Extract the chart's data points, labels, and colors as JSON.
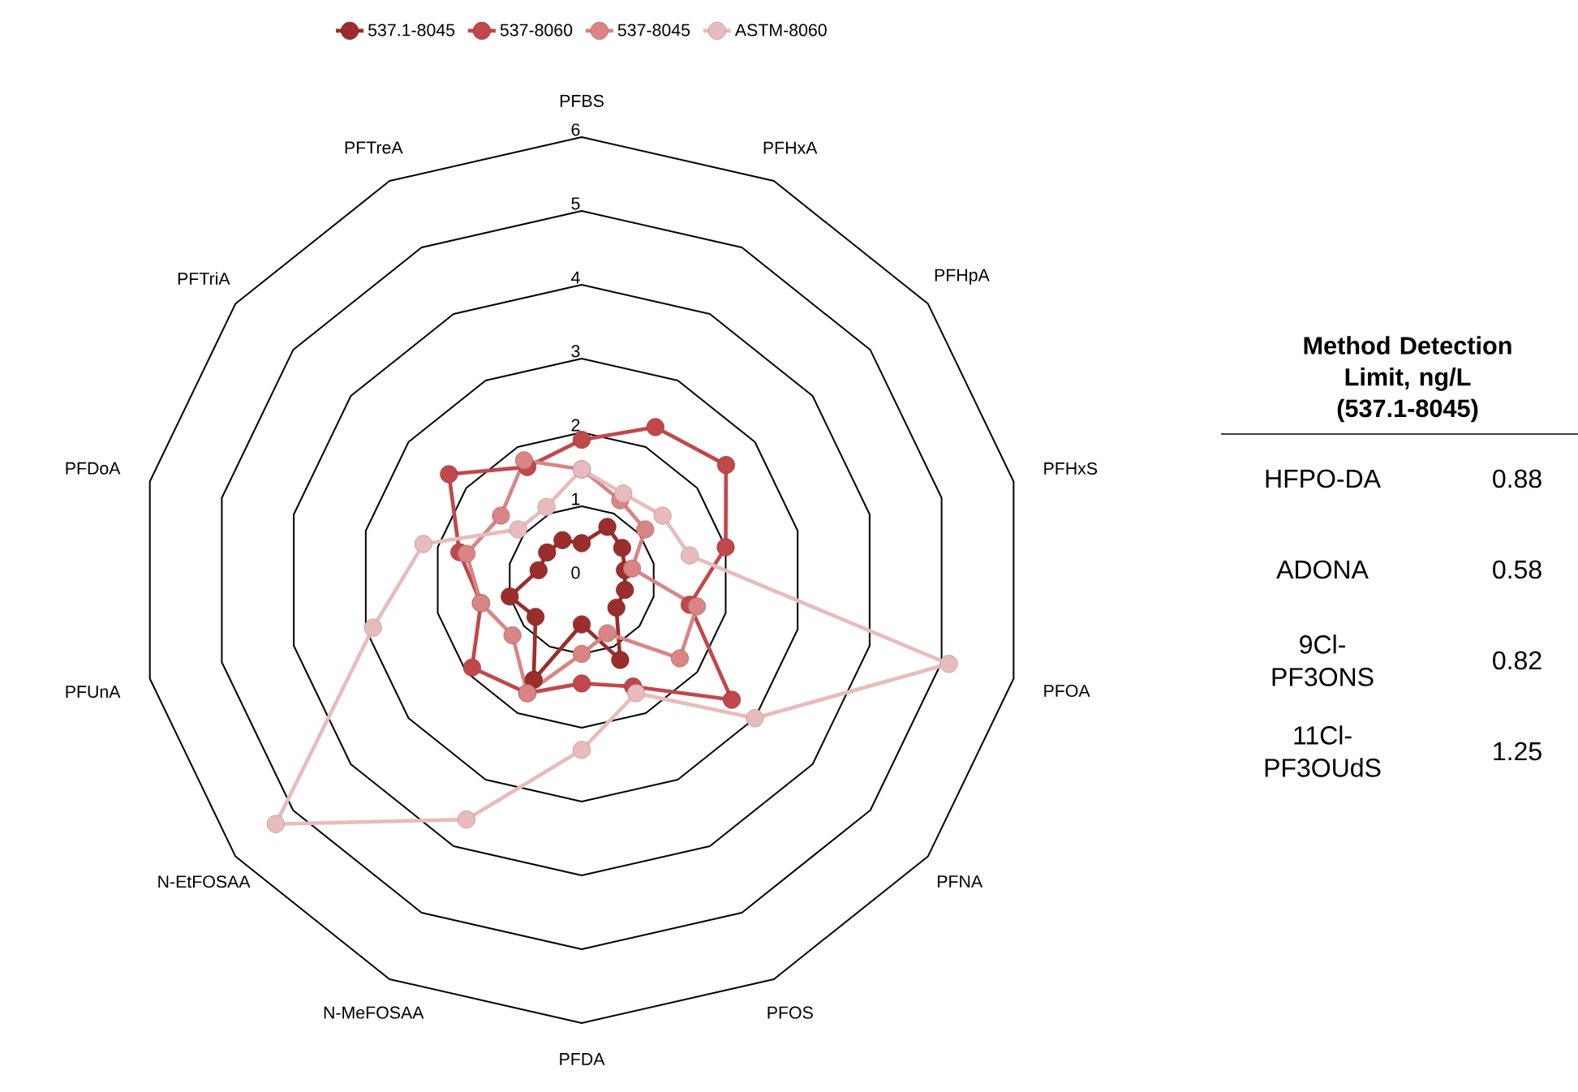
{
  "chart_data": [
    {
      "type": "radar",
      "categories": [
        "PFBS",
        "PFHxA",
        "PFHpA",
        "PFHxS",
        "PFOA",
        "PFNA",
        "PFOS",
        "PFDA",
        "N-MeFOSAA",
        "N-EtFOSAA",
        "PFUnA",
        "PFDoA",
        "PFTriA",
        "PFTreA"
      ],
      "series": [
        {
          "name": "537.1-8045",
          "color": "#9b2d2d",
          "values": [
            0.5,
            0.8,
            0.7,
            0.6,
            0.6,
            0.6,
            1.2,
            0.6,
            1.5,
            0.8,
            1.0,
            0.6,
            0.6,
            0.6
          ]
        },
        {
          "name": "537-8060",
          "color": "#c0484b",
          "values": [
            1.9,
            2.3,
            2.5,
            2.0,
            1.5,
            2.6,
            1.6,
            1.4,
            1.7,
            1.9,
            1.4,
            1.7,
            2.3,
            1.7
          ]
        },
        {
          "name": "537-8045",
          "color": "#d98585",
          "values": [
            1.5,
            1.2,
            1.1,
            0.7,
            1.6,
            1.7,
            0.8,
            1.0,
            1.7,
            1.2,
            1.4,
            1.6,
            1.4,
            1.8
          ]
        },
        {
          "name": "ASTM-8060",
          "color": "#e8bcbc",
          "values": [
            1.5,
            1.3,
            1.4,
            1.5,
            5.1,
            3.0,
            1.7,
            2.3,
            3.6,
            5.3,
            2.9,
            2.2,
            1.1,
            1.1
          ]
        }
      ],
      "ylim": [
        0,
        6
      ],
      "yticks": [
        0,
        1,
        2,
        3,
        4,
        5,
        6
      ],
      "grid": true,
      "legend": "top",
      "marker": "circle"
    },
    {
      "type": "other",
      "title": "Method Detection Limit, ng/L (537.1-8045)",
      "categories": [
        "HFPO-DA",
        "ADONA",
        "9Cl-PF3ONS",
        "11Cl-PF3OUdS"
      ],
      "values": [
        0.88,
        0.58,
        0.82,
        1.25
      ],
      "data_labels": true
    }
  ]
}
